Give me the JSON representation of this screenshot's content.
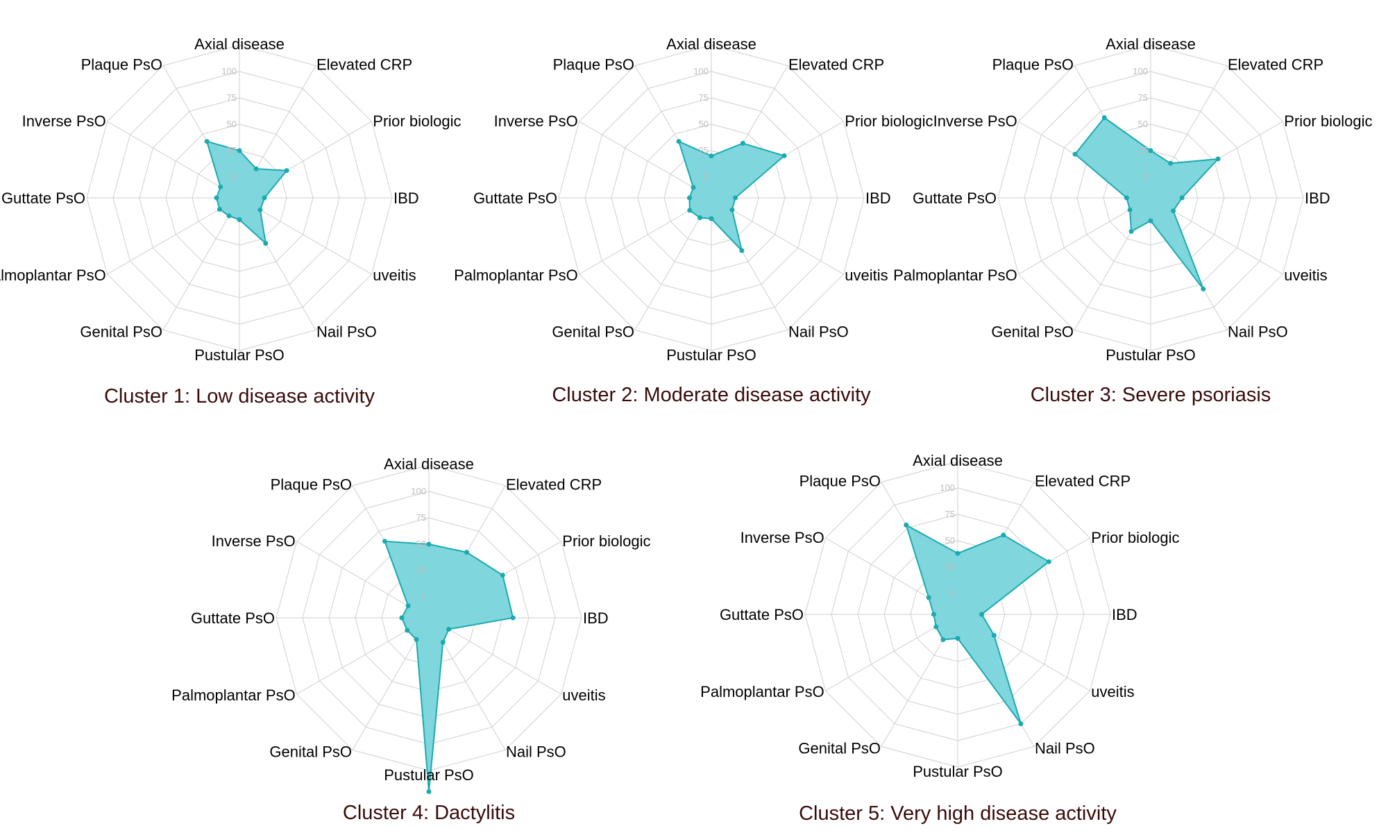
{
  "chart_data": [
    {
      "type": "radar",
      "title": "Cluster 1: Low disease activity",
      "categories": [
        "Axial disease",
        "Elevated CRP",
        "Prior biologic",
        "IBD",
        "uveitis",
        "Nail PsO",
        "Pustular PsO",
        "Genital PsO",
        "Palmoplantar PsO",
        "Guttate PsO",
        "Inverse PsO",
        "Plaque PsO"
      ],
      "values": [
        25,
        12,
        32,
        4,
        3,
        30,
        1,
        0,
        2,
        2,
        1,
        42
      ],
      "r_ticks": [
        "0",
        "25",
        "50",
        "75",
        "100"
      ],
      "rlim": [
        0,
        100
      ]
    },
    {
      "type": "radar",
      "title": "Cluster 2: Moderate disease activity",
      "categories": [
        "Axial disease",
        "Elevated CRP",
        "Prior biologic",
        "IBD",
        "uveitis",
        "Nail PsO",
        "Pustular PsO",
        "Genital PsO",
        "Palmoplantar PsO",
        "Guttate PsO",
        "Inverse PsO",
        "Plaque PsO"
      ],
      "values": [
        20,
        40,
        60,
        3,
        3,
        38,
        0,
        2,
        4,
        1,
        0,
        42
      ],
      "r_ticks": [
        "0",
        "25",
        "50",
        "75",
        "100"
      ],
      "rlim": [
        0,
        100
      ]
    },
    {
      "type": "radar",
      "title": "Cluster 3: Severe psoriasis",
      "categories": [
        "Axial disease",
        "Elevated CRP",
        "Prior biologic",
        "IBD",
        "uveitis",
        "Nail PsO",
        "Pustular PsO",
        "Genital PsO",
        "Palmoplantar PsO",
        "Guttate PsO",
        "Inverse PsO",
        "Plaque PsO"
      ],
      "values": [
        25,
        18,
        54,
        10,
        5,
        80,
        2,
        17,
        3,
        3,
        63,
        68
      ],
      "r_ticks": [
        "0",
        "25",
        "50",
        "75",
        "100"
      ],
      "rlim": [
        0,
        100
      ]
    },
    {
      "type": "radar",
      "title": "Cluster 4: Dactylitis",
      "categories": [
        "Axial disease",
        "Elevated CRP",
        "Prior biologic",
        "IBD",
        "uveitis",
        "Nail PsO",
        "Pustular PsO",
        "Genital PsO",
        "Palmoplantar PsO",
        "Guttate PsO",
        "Inverse PsO",
        "Plaque PsO"
      ],
      "values": [
        50,
        52,
        61,
        60,
        2,
        7,
        145,
        4,
        4,
        6,
        3,
        64
      ],
      "r_ticks": [
        "0",
        "25",
        "50",
        "75",
        "100"
      ],
      "rlim": [
        0,
        100
      ]
    },
    {
      "type": "radar",
      "title": "Cluster 5: Very high disease activity",
      "categories": [
        "Axial disease",
        "Elevated CRP",
        "Prior biologic",
        "IBD",
        "uveitis",
        "Nail PsO",
        "Pustular PsO",
        "Genital PsO",
        "Palmoplantar PsO",
        "Guttate PsO",
        "Inverse PsO",
        "Plaque PsO"
      ],
      "values": [
        38,
        67,
        80,
        3,
        20,
        100,
        3,
        8,
        4,
        3,
        12,
        78
      ],
      "r_ticks": [
        "0",
        "25",
        "50",
        "75",
        "100"
      ],
      "rlim": [
        0,
        100
      ]
    }
  ],
  "colors": {
    "fill": "#7fd6dd",
    "line": "#1aaab0",
    "grid": "#d6d6d6",
    "tick": "#bdbdbd",
    "title": "#3a0a0a"
  }
}
